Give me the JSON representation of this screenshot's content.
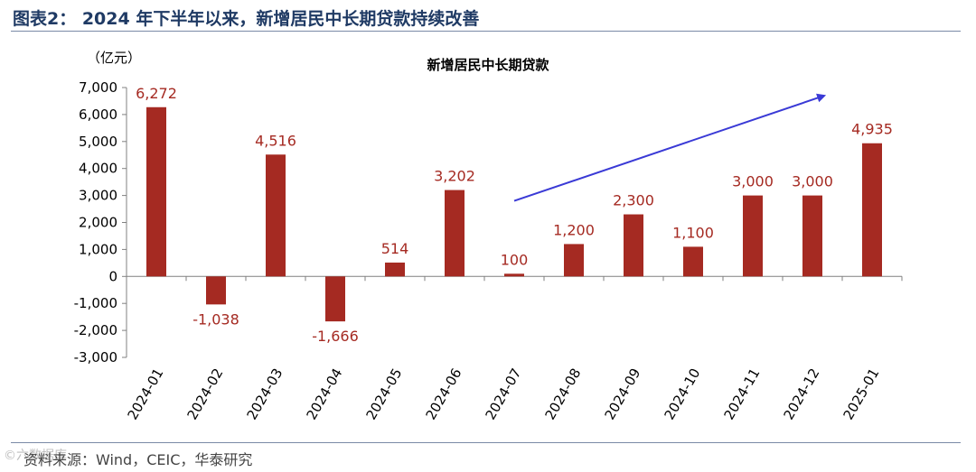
{
  "figure": {
    "title": "图表2： 2024 年下半年以来，新增居民中长期贷款持续改善",
    "source": "资料来源：Wind，CEIC，华泰研究",
    "watermark": "©六数据库"
  },
  "chart_data": {
    "type": "bar",
    "title": "新增居民中长期贷款",
    "unit_label": "（亿元）",
    "categories": [
      "2024-01",
      "2024-02",
      "2024-03",
      "2024-04",
      "2024-05",
      "2024-06",
      "2024-07",
      "2024-08",
      "2024-09",
      "2024-10",
      "2024-11",
      "2024-12",
      "2025-01"
    ],
    "values": [
      6272,
      -1038,
      4516,
      -1666,
      514,
      3202,
      100,
      1200,
      2300,
      1100,
      3000,
      3000,
      4935
    ],
    "data_labels": [
      "6,272",
      "-1,038",
      "4,516",
      "-1,666",
      "514",
      "3,202",
      "100",
      "1,200",
      "2,300",
      "1,100",
      "3,000",
      "3,000",
      "4,935"
    ],
    "ylim": [
      -3000,
      7000
    ],
    "yticks": [
      7000,
      6000,
      5000,
      4000,
      3000,
      2000,
      1000,
      0,
      -1000,
      -2000,
      -3000
    ],
    "ytick_labels": [
      "7,000",
      "6,000",
      "5,000",
      "4,000",
      "3,000",
      "2,000",
      "1,000",
      "0",
      "-1,000",
      "-2,000",
      "-3,000"
    ],
    "grid": false,
    "legend": "none",
    "bar_color": "#a52a22",
    "label_color": "#a52a22",
    "annotation": {
      "type": "arrow",
      "from": [
        "2024-07",
        2800
      ],
      "to": [
        "2025-01",
        6700
      ],
      "color": "#3a3ad6"
    }
  }
}
